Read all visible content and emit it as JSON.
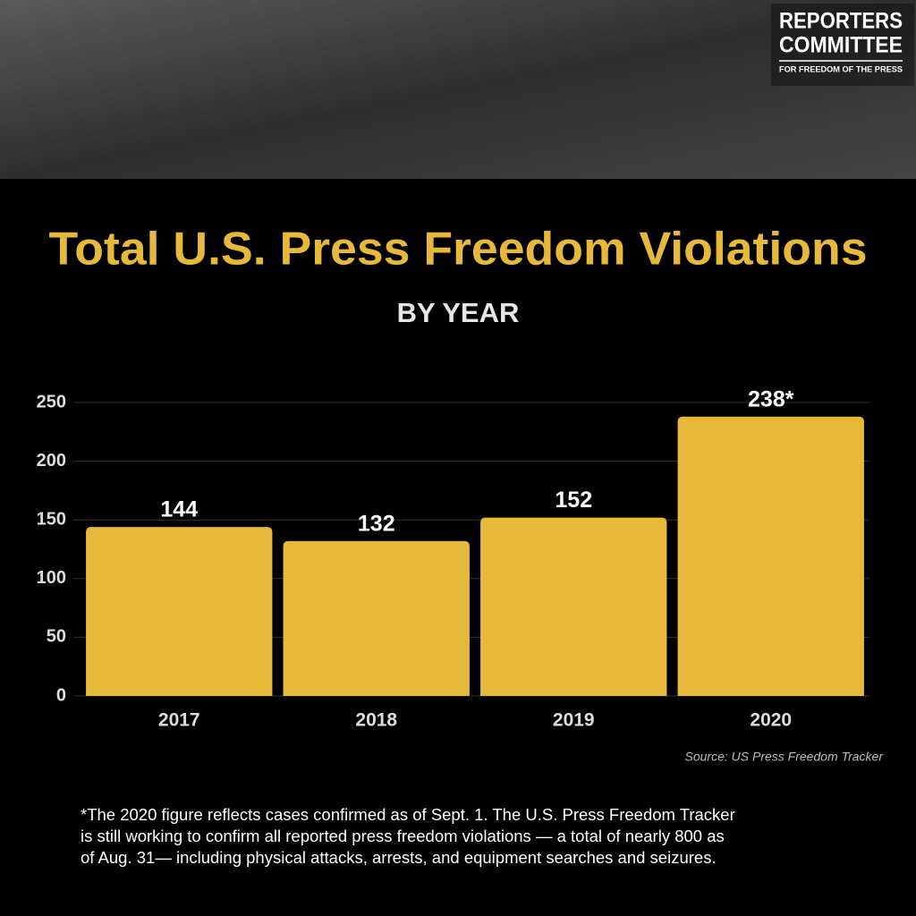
{
  "chart_data": {
    "type": "bar",
    "title": "Total U.S. Press Freedom Violations",
    "subtitle": "BY YEAR",
    "categories": [
      "2017",
      "2018",
      "2019",
      "2020"
    ],
    "values": [
      144,
      132,
      152,
      238
    ],
    "value_labels": [
      "144",
      "132",
      "152",
      "238*"
    ],
    "color": "#e6b93a",
    "ylim": [
      0,
      250
    ],
    "yticks": [
      0,
      50,
      100,
      150,
      200,
      250
    ],
    "grid": true,
    "source": "Source: US Press Freedom Tracker",
    "footnote": [
      "*The 2020 figure reflects cases confirmed as of Sept. 1. The U.S. Press Freedom Tracker",
      "is still working to confirm all reported press freedom violations — a total of nearly 800 as",
      "of Aug. 31— including physical attacks, arrests, and equipment searches and seizures."
    ]
  },
  "logo": {
    "line1": "REPORTERS",
    "line2": "COMMITTEE",
    "tagline": "FOR FREEDOM OF THE PRESS"
  }
}
